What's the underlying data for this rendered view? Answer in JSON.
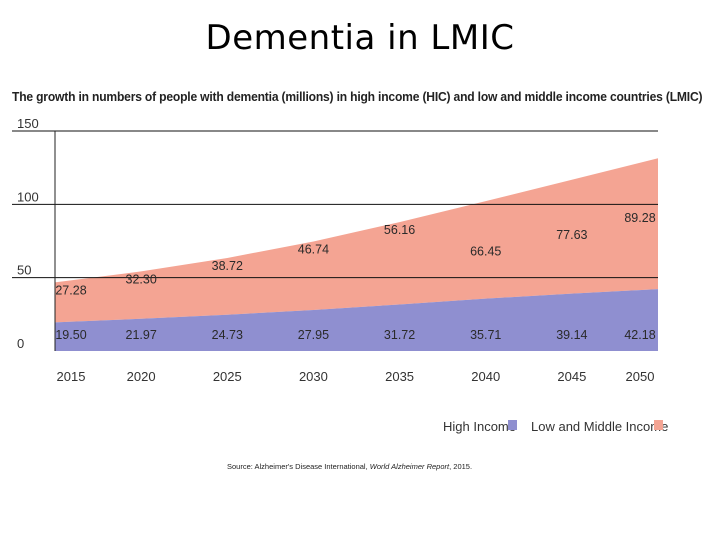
{
  "slide": {
    "title": "Dementia in LMIC"
  },
  "source": {
    "prefix": "Source: Alzheimer's Disease International, ",
    "report": "World Alzheimer Report",
    "suffix": ", 2015."
  },
  "colors": {
    "high_income": "#8f8fd0",
    "lmic": "#f4a493",
    "grid": "#111111",
    "axis": "#222222"
  },
  "chart_data": {
    "type": "area",
    "stacked": true,
    "title": "The growth in numbers of people with dementia (millions) in high income (HIC) and low and middle income countries (LMIC)",
    "x": [
      "2015",
      "2020",
      "2025",
      "2030",
      "2035",
      "2040",
      "2045",
      "2050"
    ],
    "y_ticks": [
      "0",
      "50",
      "100",
      "150"
    ],
    "ylim": [
      0,
      150
    ],
    "grid": true,
    "legend_position": "bottom-right",
    "series": [
      {
        "name": "High Income",
        "values": [
          19.5,
          21.97,
          24.73,
          27.95,
          31.72,
          35.71,
          39.14,
          42.18
        ],
        "labels": [
          "19.50",
          "21.97",
          "24.73",
          "27.95",
          "31.72",
          "35.71",
          "39.14",
          "42.18"
        ]
      },
      {
        "name": "Low and Middle Income",
        "values": [
          27.28,
          32.3,
          38.72,
          46.74,
          56.16,
          66.45,
          77.63,
          89.28
        ],
        "labels": [
          "27.28",
          "32.30",
          "38.72",
          "46.74",
          "56.16",
          "66.45",
          "77.63",
          "89.28"
        ]
      }
    ]
  }
}
